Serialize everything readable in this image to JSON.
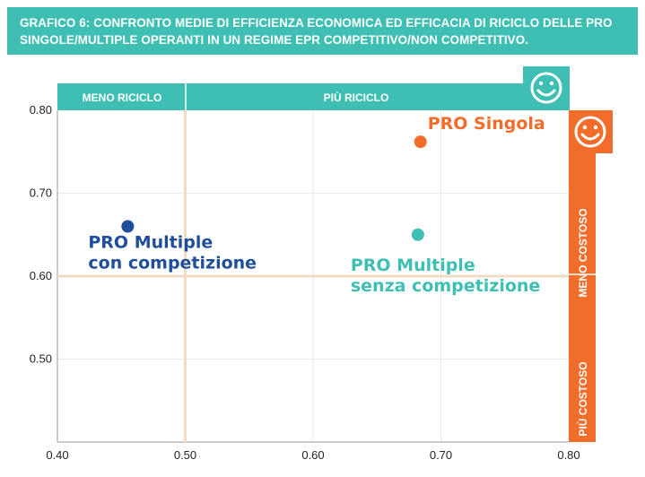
{
  "title": {
    "line1": "GRAFICO 6: CONFRONTO MEDIE DI EFFICIENZA ECONOMICA ED EFFICACIA DI RICICLO DELLE PRO",
    "line2": "SINGOLE/MULTIPLE OPERANTI IN UN REGIME EPR COMPETITIVO/NON COMPETITIVO."
  },
  "colors": {
    "teal": "#3fbfb3",
    "orange": "#f26c2b",
    "blue": "#1f4e9c",
    "divider": "#f2ddc4",
    "grid": "#e8e8e8",
    "axis": "#9a9a9a"
  },
  "bands": {
    "meno_riciclo": "MENO RICICLO",
    "piu_riciclo": "PIÙ RICICLO",
    "meno_costoso": "MENO COSTOSO",
    "piu_costoso": "PIÙ COSTOSO"
  },
  "icons": [
    "smiley-icon-recycling",
    "smiley-icon-cost"
  ],
  "chart_data": {
    "type": "scatter",
    "xlim": [
      0.4,
      0.8
    ],
    "ylim": [
      0.44,
      0.83
    ],
    "x_ticks": [
      "0.40",
      "0.50",
      "0.60",
      "0.70",
      "0.80"
    ],
    "y_ticks": [
      "0.50",
      "0.60",
      "0.70",
      "0.80"
    ],
    "x_tick_values": [
      0.4,
      0.5,
      0.6,
      0.7,
      0.8
    ],
    "y_tick_values": [
      0.5,
      0.6,
      0.7,
      0.8
    ],
    "divider_x": 0.5,
    "divider_y": 0.6,
    "grid": true,
    "points": [
      {
        "name": "PRO Singola",
        "label_lines": [
          "PRO Singola"
        ],
        "x": 0.684,
        "y": 0.762,
        "color": "#f26c2b"
      },
      {
        "name": "PRO Multiple con competizione",
        "label_lines": [
          "PRO Multiple",
          "con competizione"
        ],
        "x": 0.455,
        "y": 0.66,
        "color": "#1f4e9c"
      },
      {
        "name": "PRO Multiple senza competizione",
        "label_lines": [
          "PRO Multiple",
          "senza competizione"
        ],
        "x": 0.682,
        "y": 0.65,
        "color": "#3fbfb3"
      }
    ]
  }
}
